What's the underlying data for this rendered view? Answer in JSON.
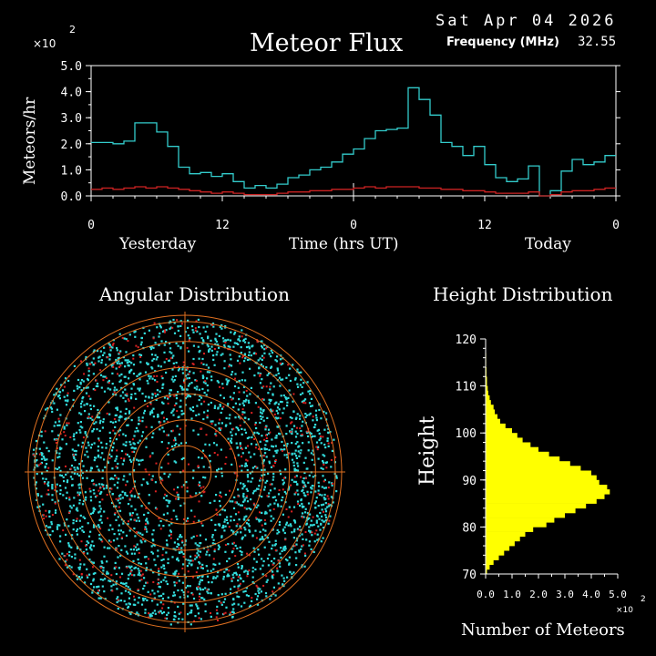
{
  "header": {
    "date": "Sat Apr 04 2026",
    "title": "Meteor Flux",
    "freq_label": "Frequency (MHz)",
    "freq_value": "32.55"
  },
  "colors": {
    "background": "#000000",
    "axis": "#ffffff",
    "flux_line": "#33cccc",
    "flux_low": "#cc2222",
    "angular_ring": "#e07020",
    "angular_points_a": "#33dddd",
    "angular_points_b": "#dd2222",
    "height_fill": "#ffff00"
  },
  "chart_data": [
    {
      "type": "line",
      "title": "Meteor Flux",
      "ylabel": "Meteors/hr",
      "y_scale_note": "×10",
      "y_scale_exp": "2",
      "ylim": [
        0,
        5
      ],
      "yticks": [
        "0.0",
        "1.0",
        "2.0",
        "3.0",
        "4.0",
        "5.0"
      ],
      "xticks": [
        "0",
        "12",
        "0",
        "12",
        "0"
      ],
      "xlabel_left": "Yesterday",
      "xlabel": "Time (hrs UT)",
      "xlabel_right": "Today",
      "xlim": [
        0,
        48
      ],
      "series": [
        {
          "values": [
            2.05,
            2.05,
            2.0,
            2.1,
            2.8,
            2.8,
            2.45,
            1.9,
            1.1,
            0.85,
            0.9,
            0.75,
            0.85,
            0.55,
            0.3,
            0.4,
            0.3,
            0.45,
            0.7,
            0.8,
            1.0,
            1.1,
            1.3,
            1.6,
            1.8,
            2.2,
            2.5,
            2.55,
            2.6,
            4.15,
            3.7,
            3.1,
            2.05,
            1.9,
            1.55,
            1.9,
            1.2,
            0.7,
            0.55,
            0.65,
            1.15,
            0.0,
            0.2,
            0.95,
            1.4,
            1.2,
            1.3,
            1.55
          ]
        },
        {
          "values": [
            0.25,
            0.3,
            0.25,
            0.3,
            0.35,
            0.3,
            0.35,
            0.3,
            0.25,
            0.2,
            0.15,
            0.1,
            0.15,
            0.1,
            0.05,
            0.05,
            0.05,
            0.1,
            0.15,
            0.15,
            0.2,
            0.2,
            0.25,
            0.25,
            0.3,
            0.35,
            0.3,
            0.35,
            0.35,
            0.35,
            0.3,
            0.3,
            0.25,
            0.25,
            0.2,
            0.2,
            0.15,
            0.1,
            0.1,
            0.1,
            0.15,
            0.0,
            0.05,
            0.15,
            0.2,
            0.2,
            0.25,
            0.3
          ]
        }
      ]
    },
    {
      "type": "scatter",
      "title": "Angular Distribution",
      "polar_rings": 6
    },
    {
      "type": "bar",
      "orientation": "horizontal",
      "title": "Height Distribution",
      "ylabel": "Height",
      "xlabel": "Number of Meteors",
      "x_scale_note": "×10",
      "x_scale_exp": "2",
      "ylim": [
        70,
        120
      ],
      "xlim": [
        0,
        5
      ],
      "yticks": [
        "70",
        "80",
        "90",
        "100",
        "110",
        "120"
      ],
      "xticks": [
        "0.0",
        "1.0",
        "2.0",
        "3.0",
        "4.0",
        "5.0"
      ],
      "bin_heights": [
        70,
        71,
        72,
        73,
        74,
        75,
        76,
        77,
        78,
        79,
        80,
        81,
        82,
        83,
        84,
        85,
        86,
        87,
        88,
        89,
        90,
        91,
        92,
        93,
        94,
        95,
        96,
        97,
        98,
        99,
        100,
        101,
        102,
        103,
        104,
        105,
        106,
        107,
        108,
        109,
        110,
        111,
        112,
        113,
        114,
        115,
        116,
        117,
        118,
        119
      ],
      "values": [
        0.05,
        0.15,
        0.3,
        0.5,
        0.7,
        0.9,
        1.1,
        1.3,
        1.5,
        1.8,
        2.3,
        2.6,
        3.0,
        3.4,
        3.8,
        4.2,
        4.5,
        4.7,
        4.6,
        4.3,
        4.2,
        4.0,
        3.6,
        3.2,
        2.8,
        2.4,
        2.0,
        1.7,
        1.4,
        1.2,
        1.0,
        0.75,
        0.55,
        0.45,
        0.35,
        0.3,
        0.2,
        0.15,
        0.1,
        0.08,
        0.05,
        0.05,
        0.03,
        0.03,
        0.02,
        0.02,
        0.02,
        0.01,
        0.01,
        0.01
      ]
    }
  ]
}
